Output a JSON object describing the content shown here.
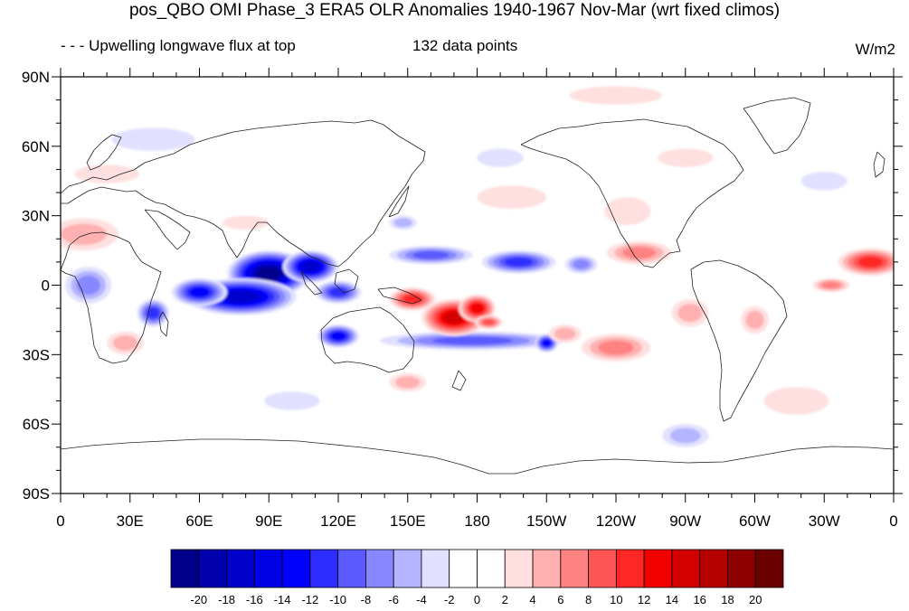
{
  "title": "pos_QBO OMI Phase_3 ERA5 OLR Anomalies 1940-1967 Nov-Mar (wrt fixed climos)",
  "subtitle_left": "- - - Upwelling longwave flux at top",
  "subtitle_center": "132 data points",
  "units": "W/m2",
  "chart_data": {
    "type": "heatmap",
    "projection": "cylindrical equidistant, centered 180",
    "lon_range": [
      0,
      360
    ],
    "lat_range": [
      -90,
      90
    ],
    "x_ticks": [
      {
        "lon": 0,
        "label": "0"
      },
      {
        "lon": 30,
        "label": "30E"
      },
      {
        "lon": 60,
        "label": "60E"
      },
      {
        "lon": 90,
        "label": "90E"
      },
      {
        "lon": 120,
        "label": "120E"
      },
      {
        "lon": 150,
        "label": "150E"
      },
      {
        "lon": 180,
        "label": "180"
      },
      {
        "lon": 210,
        "label": "150W"
      },
      {
        "lon": 240,
        "label": "120W"
      },
      {
        "lon": 270,
        "label": "90W"
      },
      {
        "lon": 300,
        "label": "60W"
      },
      {
        "lon": 330,
        "label": "30W"
      },
      {
        "lon": 360,
        "label": "0"
      }
    ],
    "y_ticks": [
      {
        "lat": 90,
        "label": "90N"
      },
      {
        "lat": 60,
        "label": "60N"
      },
      {
        "lat": 30,
        "label": "30N"
      },
      {
        "lat": 0,
        "label": "0"
      },
      {
        "lat": -30,
        "label": "30S"
      },
      {
        "lat": -60,
        "label": "60S"
      },
      {
        "lat": -90,
        "label": "90S"
      }
    ],
    "contour_levels": [
      -20,
      -18,
      -16,
      -14,
      -12,
      -10,
      -8,
      -6,
      -4,
      -2,
      0,
      2,
      4,
      6,
      8,
      10,
      12,
      14,
      16,
      18,
      20
    ],
    "colorbar_colors": [
      "#00008a",
      "#0000ad",
      "#0000cc",
      "#0000e6",
      "#0000ff",
      "#2d2dff",
      "#5a5aff",
      "#8787ff",
      "#b4b4ff",
      "#e1e1ff",
      "#ffffff",
      "#ffffff",
      "#ffe0e0",
      "#ffb0b0",
      "#ff8282",
      "#ff5454",
      "#ff2626",
      "#f20000",
      "#d40000",
      "#b50000",
      "#8f0000",
      "#6b0000"
    ],
    "anomaly_features": [
      {
        "lon": 90,
        "lat": 5,
        "rx": 18,
        "ry": 10,
        "value": -20
      },
      {
        "lon": 78,
        "lat": -5,
        "rx": 24,
        "ry": 8,
        "value": -16
      },
      {
        "lon": 108,
        "lat": 8,
        "rx": 12,
        "ry": 7,
        "value": -16
      },
      {
        "lon": 60,
        "lat": -3,
        "rx": 12,
        "ry": 6,
        "value": -12
      },
      {
        "lon": 120,
        "lat": -3,
        "rx": 10,
        "ry": 5,
        "value": -10
      },
      {
        "lon": 40,
        "lat": -12,
        "rx": 7,
        "ry": 6,
        "value": -10
      },
      {
        "lon": 160,
        "lat": 13,
        "rx": 18,
        "ry": 4,
        "value": -8
      },
      {
        "lon": 198,
        "lat": 10,
        "rx": 16,
        "ry": 5,
        "value": -10
      },
      {
        "lon": 225,
        "lat": 9,
        "rx": 7,
        "ry": 4,
        "value": -6
      },
      {
        "lon": 120,
        "lat": -22,
        "rx": 9,
        "ry": 5,
        "value": -12
      },
      {
        "lon": 178,
        "lat": -24,
        "rx": 40,
        "ry": 4,
        "value": -8
      },
      {
        "lon": 210,
        "lat": -25,
        "rx": 5,
        "ry": 4,
        "value": -12
      },
      {
        "lon": 12,
        "lat": 0,
        "rx": 10,
        "ry": 8,
        "value": -6
      },
      {
        "lon": 148,
        "lat": 27,
        "rx": 6,
        "ry": 3,
        "value": -4
      },
      {
        "lon": 170,
        "lat": -14,
        "rx": 14,
        "ry": 8,
        "value": 14
      },
      {
        "lon": 152,
        "lat": -6,
        "rx": 10,
        "ry": 5,
        "value": 10
      },
      {
        "lon": 180,
        "lat": -10,
        "rx": 8,
        "ry": 6,
        "value": 12
      },
      {
        "lon": 185,
        "lat": -16,
        "rx": 6,
        "ry": 3,
        "value": 8
      },
      {
        "lon": 240,
        "lat": -27,
        "rx": 15,
        "ry": 6,
        "value": 6
      },
      {
        "lon": 218,
        "lat": -21,
        "rx": 7,
        "ry": 4,
        "value": 4
      },
      {
        "lon": 350,
        "lat": 10,
        "rx": 14,
        "ry": 6,
        "value": 10
      },
      {
        "lon": 333,
        "lat": 0,
        "rx": 8,
        "ry": 3,
        "value": 6
      },
      {
        "lon": 250,
        "lat": 14,
        "rx": 14,
        "ry": 5,
        "value": 6
      },
      {
        "lon": 272,
        "lat": -12,
        "rx": 8,
        "ry": 6,
        "value": 4
      },
      {
        "lon": 300,
        "lat": -15,
        "rx": 6,
        "ry": 6,
        "value": 4
      },
      {
        "lon": 10,
        "lat": 22,
        "rx": 15,
        "ry": 7,
        "value": 4
      },
      {
        "lon": 28,
        "lat": -25,
        "rx": 8,
        "ry": 5,
        "value": 4
      },
      {
        "lon": 80,
        "lat": 27,
        "rx": 10,
        "ry": 3,
        "value": 2
      },
      {
        "lon": 245,
        "lat": 32,
        "rx": 10,
        "ry": 6,
        "value": 2
      },
      {
        "lon": 240,
        "lat": 82,
        "rx": 20,
        "ry": 4,
        "value": 2
      },
      {
        "lon": 195,
        "lat": 38,
        "rx": 15,
        "ry": 5,
        "value": 2
      },
      {
        "lon": 20,
        "lat": 48,
        "rx": 14,
        "ry": 4,
        "value": 2
      },
      {
        "lon": 318,
        "lat": -50,
        "rx": 14,
        "ry": 6,
        "value": 2
      },
      {
        "lon": 270,
        "lat": 55,
        "rx": 12,
        "ry": 4,
        "value": 2
      },
      {
        "lon": 150,
        "lat": -42,
        "rx": 8,
        "ry": 4,
        "value": 4
      },
      {
        "lon": 100,
        "lat": -50,
        "rx": 12,
        "ry": 4,
        "value": -2
      },
      {
        "lon": 190,
        "lat": 55,
        "rx": 10,
        "ry": 4,
        "value": -2
      },
      {
        "lon": 270,
        "lat": -65,
        "rx": 10,
        "ry": 5,
        "value": -4
      },
      {
        "lon": 330,
        "lat": 45,
        "rx": 10,
        "ry": 4,
        "value": -2
      },
      {
        "lon": 40,
        "lat": 63,
        "rx": 18,
        "ry": 5,
        "value": -2
      }
    ]
  }
}
